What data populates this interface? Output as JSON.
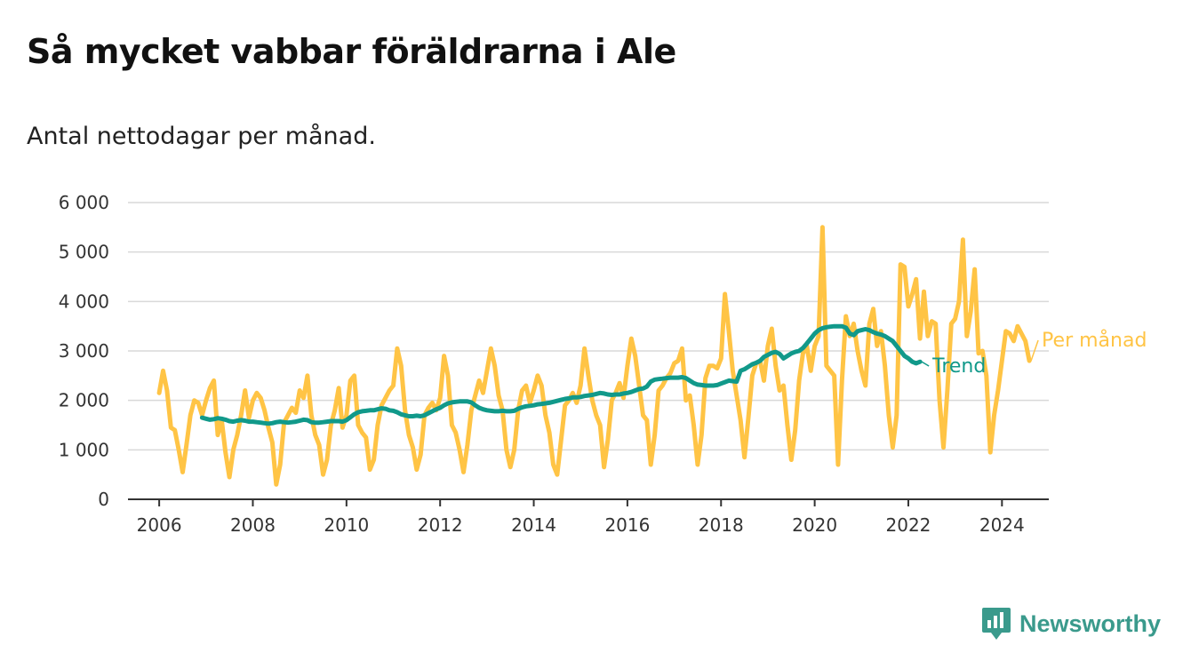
{
  "title": "Så mycket vabbar föräldrarna i Ale",
  "subtitle": "Antal nettodagar per månad.",
  "brand": {
    "name": "Newsworthy",
    "icon": "chart-bubble-icon",
    "color": "#3a9a8c"
  },
  "colors": {
    "monthly": "#ffc445",
    "trend": "#11998a",
    "grid": "#d9d9d9",
    "axis": "#333333"
  },
  "chart_data": {
    "type": "line",
    "ylim": [
      0,
      6000
    ],
    "yticks": [
      0,
      1000,
      2000,
      3000,
      4000,
      5000,
      6000
    ],
    "ytick_labels": [
      "0",
      "1 000",
      "2 000",
      "3 000",
      "4 000",
      "5 000",
      "6 000"
    ],
    "xlim": [
      "2005-05",
      "2025-01"
    ],
    "xticks": [
      "2006-01",
      "2008-01",
      "2010-01",
      "2012-01",
      "2014-01",
      "2016-01",
      "2018-01",
      "2020-01",
      "2022-01",
      "2024-01"
    ],
    "xtick_labels": [
      "2006",
      "2008",
      "2010",
      "2012",
      "2014",
      "2016",
      "2018",
      "2020",
      "2022",
      "2024"
    ],
    "grid": true,
    "series": [
      {
        "name": "Per månad",
        "color": "#ffc445",
        "start": "2006-01",
        "values": [
          2150,
          2600,
          2200,
          1450,
          1400,
          1000,
          550,
          1100,
          1700,
          2000,
          1950,
          1700,
          2000,
          2250,
          2400,
          1300,
          1600,
          950,
          450,
          1000,
          1300,
          1700,
          2200,
          1650,
          2000,
          2150,
          2050,
          1800,
          1450,
          1150,
          300,
          700,
          1550,
          1700,
          1850,
          1750,
          2200,
          2050,
          2500,
          1700,
          1300,
          1100,
          500,
          800,
          1500,
          1800,
          2250,
          1450,
          1700,
          2400,
          2500,
          1500,
          1350,
          1250,
          600,
          800,
          1500,
          1900,
          2050,
          2200,
          2300,
          3050,
          2700,
          1800,
          1300,
          1050,
          600,
          900,
          1700,
          1850,
          1950,
          1800,
          2050,
          2900,
          2500,
          1500,
          1350,
          1000,
          550,
          1100,
          1800,
          2100,
          2400,
          2150,
          2600,
          3050,
          2700,
          2100,
          1800,
          1000,
          650,
          1000,
          1800,
          2200,
          2300,
          1950,
          2200,
          2500,
          2300,
          1700,
          1350,
          700,
          500,
          1200,
          1900,
          2000,
          2150,
          1950,
          2300,
          3050,
          2500,
          2000,
          1700,
          1500,
          650,
          1200,
          2000,
          2150,
          2350,
          2050,
          2700,
          3250,
          2900,
          2300,
          1700,
          1600,
          700,
          1300,
          2200,
          2300,
          2450,
          2550,
          2750,
          2800,
          3050,
          2000,
          2100,
          1500,
          700,
          1300,
          2450,
          2700,
          2700,
          2650,
          2850,
          4150,
          3400,
          2600,
          2100,
          1600,
          850,
          1650,
          2500,
          2750,
          2800,
          2400,
          3100,
          3450,
          2700,
          2200,
          2300,
          1500,
          800,
          1400,
          2400,
          2950,
          3100,
          2600,
          3100,
          3300,
          5500,
          2700,
          2600,
          2500,
          700,
          2400,
          3700,
          3300,
          3550,
          3000,
          2600,
          2300,
          3550,
          3850,
          3100,
          3400,
          2700,
          1700,
          1050,
          1700,
          4750,
          4700,
          3900,
          4150,
          4450,
          3250,
          4200,
          3300,
          3600,
          3550,
          2000,
          1050,
          2200,
          3550,
          3650,
          4000,
          5250,
          3300,
          3800,
          4650,
          2950,
          3000,
          2500,
          950,
          1700,
          2200,
          2800,
          3400,
          3350,
          3200,
          3500,
          3350,
          3200,
          2800
        ]
      },
      {
        "name": "Trend",
        "color": "#11998a",
        "start": "2006-12",
        "values": [
          1650,
          1630,
          1610,
          1620,
          1640,
          1630,
          1610,
          1580,
          1570,
          1590,
          1600,
          1590,
          1570,
          1570,
          1560,
          1550,
          1540,
          1530,
          1540,
          1560,
          1570,
          1560,
          1550,
          1560,
          1570,
          1590,
          1610,
          1600,
          1560,
          1550,
          1550,
          1560,
          1570,
          1580,
          1580,
          1580,
          1570,
          1600,
          1660,
          1720,
          1760,
          1780,
          1790,
          1800,
          1800,
          1820,
          1840,
          1830,
          1800,
          1790,
          1760,
          1720,
          1700,
          1680,
          1680,
          1690,
          1680,
          1700,
          1740,
          1780,
          1820,
          1850,
          1900,
          1940,
          1960,
          1970,
          1980,
          1980,
          1980,
          1960,
          1900,
          1850,
          1820,
          1800,
          1790,
          1780,
          1780,
          1790,
          1780,
          1780,
          1790,
          1830,
          1860,
          1880,
          1890,
          1900,
          1920,
          1930,
          1940,
          1950,
          1970,
          1990,
          2010,
          2030,
          2040,
          2060,
          2060,
          2070,
          2090,
          2100,
          2110,
          2130,
          2150,
          2140,
          2120,
          2110,
          2120,
          2120,
          2140,
          2150,
          2170,
          2200,
          2230,
          2240,
          2280,
          2380,
          2420,
          2430,
          2440,
          2450,
          2460,
          2460,
          2460,
          2470,
          2450,
          2400,
          2350,
          2320,
          2310,
          2300,
          2300,
          2300,
          2310,
          2340,
          2370,
          2400,
          2390,
          2380,
          2600,
          2630,
          2680,
          2730,
          2760,
          2800,
          2880,
          2920,
          2960,
          2980,
          2940,
          2850,
          2900,
          2950,
          2980,
          3000,
          3060,
          3150,
          3250,
          3350,
          3420,
          3460,
          3480,
          3490,
          3500,
          3500,
          3500,
          3470,
          3350,
          3320,
          3400,
          3420,
          3440,
          3420,
          3380,
          3350,
          3330,
          3300,
          3250,
          3200,
          3100,
          3000,
          2900,
          2850,
          2780,
          2750,
          2780
        ]
      }
    ]
  }
}
